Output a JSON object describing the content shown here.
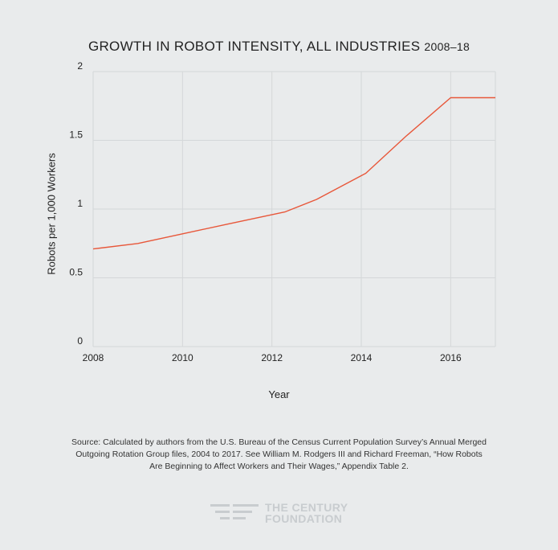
{
  "chart_data": {
    "type": "line",
    "title": "GROWTH IN ROBOT INTENSITY, ALL INDUSTRIES",
    "title_years": "2008–18",
    "xlabel": "Year",
    "ylabel": "Robots per 1,000 Workers",
    "xlim": [
      2008,
      2017
    ],
    "ylim": [
      0,
      2
    ],
    "x_ticks": [
      2008,
      2010,
      2012,
      2014,
      2016
    ],
    "y_ticks": [
      0,
      0.5,
      1,
      1.5,
      2
    ],
    "y_tick_labels": [
      "0",
      "0.5",
      "1",
      "1.5",
      "2"
    ],
    "grid": true,
    "line_color": "#e8573a",
    "series": [
      {
        "x": [
          2008,
          2009,
          2010,
          2011,
          2012.3,
          2013,
          2014.1,
          2015,
          2016,
          2017
        ],
        "values": [
          0.71,
          0.75,
          0.82,
          0.89,
          0.98,
          1.07,
          1.26,
          1.53,
          1.81,
          1.81
        ]
      }
    ]
  },
  "source_text": "Source:  Calculated by authors from the U.S. Bureau of the Census Current Population Survey’s Annual Merged Outgoing Rotation Group files, 2004 to 2017. See William M. Rodgers III and Richard Freeman, “How Robots Are Beginning to Affect Workers and Their Wages,” Appendix Table 2.",
  "logo": {
    "line1": "THE CENTURY",
    "line2": "FOUNDATION"
  }
}
